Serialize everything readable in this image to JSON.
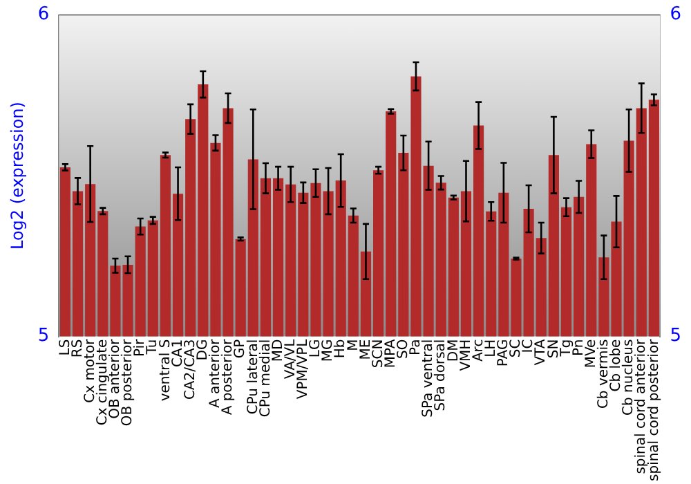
{
  "chart_data": {
    "type": "bar",
    "ylabel": "Log2 (expression)",
    "categories": [
      "LS",
      "RS",
      "Cx motor",
      "Cx cingulate",
      "OB anterior",
      "OB posterior",
      "Pir",
      "Tu",
      "ventral S",
      "CA1",
      "CA2/CA3",
      "DG",
      "A anterior",
      "A posterior",
      "GP",
      "CPu lateral",
      "CPu medial",
      "MD",
      "VA/VL",
      "VPM/VPL",
      "LG",
      "MG",
      "Hb",
      "M",
      "ME",
      "SCN",
      "MPA",
      "SO",
      "Pa",
      "SPa ventral",
      "SPa dorsal",
      "DM",
      "VMH",
      "Arc",
      "LH",
      "PAG",
      "SC",
      "IC",
      "VTA",
      "SN",
      "Tg",
      "Pn",
      "MVe",
      "Cb vermis",
      "Cb lobe",
      "Cb nucleus",
      "spinal cord anterior",
      "spinal cord posterior"
    ],
    "values": [
      5.526,
      5.452,
      5.474,
      5.39,
      5.22,
      5.223,
      5.342,
      5.361,
      5.564,
      5.444,
      5.676,
      5.784,
      5.602,
      5.71,
      5.303,
      5.551,
      5.492,
      5.492,
      5.473,
      5.447,
      5.477,
      5.452,
      5.485,
      5.376,
      5.264,
      5.517,
      5.7,
      5.571,
      5.809,
      5.531,
      5.478,
      5.432,
      5.452,
      5.656,
      5.389,
      5.447,
      5.242,
      5.397,
      5.306,
      5.564,
      5.402,
      5.434,
      5.598,
      5.246,
      5.357,
      5.609,
      5.71,
      5.736
    ],
    "errors": [
      0.01,
      0.041,
      0.118,
      0.01,
      0.022,
      0.026,
      0.025,
      0.011,
      0.008,
      0.082,
      0.046,
      0.041,
      0.024,
      0.046,
      0.005,
      0.155,
      0.047,
      0.036,
      0.055,
      0.032,
      0.043,
      0.072,
      0.082,
      0.022,
      0.086,
      0.011,
      0.007,
      0.054,
      0.044,
      0.075,
      0.021,
      0.006,
      0.094,
      0.073,
      0.029,
      0.093,
      0.003,
      0.073,
      0.048,
      0.119,
      0.028,
      0.05,
      0.043,
      0.068,
      0.08,
      0.097,
      0.077,
      0.017
    ],
    "color": "#b32a2a",
    "ylim": [
      5,
      6
    ],
    "yticks": [
      5,
      6
    ],
    "y2lim": [
      5,
      6
    ],
    "y2ticks": [
      5,
      6
    ],
    "grid": false,
    "legend": false
  }
}
